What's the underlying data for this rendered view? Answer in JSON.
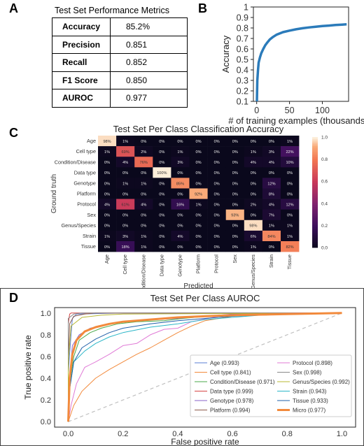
{
  "panels": {
    "A": "A",
    "B": "B",
    "C": "C",
    "D": "D"
  },
  "metrics_table": {
    "title": "Test Set Performance Metrics",
    "rows": [
      {
        "metric": "Accuracy",
        "value": "85.2%"
      },
      {
        "metric": "Precision",
        "value": "0.851"
      },
      {
        "metric": "Recall",
        "value": "0.852"
      },
      {
        "metric": "F1 Score",
        "value": "0.850"
      },
      {
        "metric": "AUROC",
        "value": "0.977"
      }
    ]
  },
  "chart_data": [
    {
      "type": "line",
      "panel": "B",
      "title": "",
      "xlabel": "# of training examples (thousands)",
      "ylabel": "Accuracy",
      "xlim": [
        -5,
        140
      ],
      "ylim": [
        0.1,
        1.0
      ],
      "xticks": [
        0,
        50,
        100
      ],
      "yticks": [
        0.1,
        0.2,
        0.3,
        0.4,
        0.5,
        0.6,
        0.7,
        0.8,
        0.9,
        1.0
      ],
      "color": "#2b7bba",
      "series": [
        {
          "x": [
            0.3,
            1,
            2,
            3,
            5,
            7,
            10,
            13,
            16,
            20,
            25,
            30,
            40,
            50,
            60,
            70,
            80,
            90,
            100,
            110,
            120,
            130,
            137
          ],
          "y": [
            0.1,
            0.3,
            0.4,
            0.47,
            0.52,
            0.56,
            0.6,
            0.635,
            0.66,
            0.69,
            0.715,
            0.735,
            0.76,
            0.775,
            0.787,
            0.797,
            0.805,
            0.812,
            0.818,
            0.823,
            0.828,
            0.832,
            0.835
          ]
        }
      ]
    },
    {
      "type": "heatmap",
      "panel": "C",
      "title": "Test Set Per Class Classification Accuracy",
      "xlabel": "Predicted",
      "ylabel": "Ground truth",
      "rows": [
        "Age",
        "Cell type",
        "Condition/Disease",
        "Data type",
        "Genotype",
        "Platform",
        "Protocol",
        "Sex",
        "Genus/Species",
        "Strain",
        "Tissue"
      ],
      "cols": [
        "Age",
        "Cell type",
        "Condition/Disease",
        "Data type",
        "Genotype",
        "Platform",
        "Protocol",
        "Sex",
        "Genus/Species",
        "Strain",
        "Tissue"
      ],
      "values": [
        [
          98,
          1,
          0,
          0,
          0,
          0,
          0,
          0,
          0,
          0,
          1
        ],
        [
          1,
          69,
          2,
          0,
          1,
          0,
          0,
          0,
          1,
          3,
          22
        ],
        [
          0,
          4,
          76,
          0,
          3,
          0,
          0,
          0,
          4,
          4,
          10
        ],
        [
          0,
          0,
          0,
          100,
          0,
          0,
          0,
          0,
          0,
          0,
          0
        ],
        [
          0,
          1,
          1,
          0,
          85,
          0,
          0,
          0,
          0,
          12,
          0
        ],
        [
          0,
          0,
          0,
          0,
          0,
          92,
          0,
          0,
          0,
          8,
          0
        ],
        [
          4,
          61,
          4,
          0,
          16,
          1,
          0,
          0,
          2,
          4,
          12
        ],
        [
          0,
          0,
          0,
          0,
          0,
          0,
          0,
          93,
          0,
          7,
          0
        ],
        [
          0,
          0,
          0,
          0,
          0,
          0,
          0,
          0,
          98,
          1,
          1
        ],
        [
          1,
          3,
          1,
          0,
          4,
          0,
          0,
          0,
          6,
          84,
          1
        ],
        [
          0,
          18,
          1,
          0,
          0,
          0,
          0,
          0,
          1,
          0,
          82
        ]
      ],
      "colorbar": {
        "min": 0.0,
        "max": 1.0,
        "ticks": [
          "0.0",
          "0.2",
          "0.4",
          "0.6",
          "0.8",
          "1.0"
        ]
      }
    },
    {
      "type": "line",
      "panel": "D",
      "title": "Test Set Per Class AUROC",
      "xlabel": "False positive rate",
      "ylabel": "True positive rate",
      "xlim": [
        -0.05,
        1.05
      ],
      "ylim": [
        -0.05,
        1.05
      ],
      "xticks": [
        "0.0",
        "0.2",
        "0.4",
        "0.6",
        "0.8",
        "1.0"
      ],
      "yticks": [
        "0.0",
        "0.2",
        "0.4",
        "0.6",
        "0.8",
        "1.0"
      ],
      "legend_position": "lower-right",
      "series": [
        {
          "name": "Age (0.993)",
          "color": "#5a7fd6",
          "width": 1,
          "points": [
            [
              0,
              0
            ],
            [
              0,
              0.45
            ],
            [
              0.01,
              0.8
            ],
            [
              0.015,
              0.95
            ],
            [
              0.03,
              0.99
            ],
            [
              0.2,
              1
            ],
            [
              1,
              1
            ]
          ]
        },
        {
          "name": "Cell type (0.841)",
          "color": "#f28a3c",
          "width": 1,
          "points": [
            [
              0,
              0
            ],
            [
              0.02,
              0.15
            ],
            [
              0.05,
              0.28
            ],
            [
              0.1,
              0.4
            ],
            [
              0.15,
              0.48
            ],
            [
              0.2,
              0.55
            ],
            [
              0.25,
              0.62
            ],
            [
              0.3,
              0.68
            ],
            [
              0.35,
              0.75
            ],
            [
              0.4,
              0.82
            ],
            [
              0.45,
              0.88
            ],
            [
              0.5,
              0.93
            ],
            [
              0.6,
              0.97
            ],
            [
              0.7,
              0.99
            ],
            [
              1,
              1
            ]
          ]
        },
        {
          "name": "Condition/Disease (0.971)",
          "color": "#4aa84a",
          "width": 1,
          "points": [
            [
              0,
              0
            ],
            [
              0.005,
              0.35
            ],
            [
              0.02,
              0.6
            ],
            [
              0.04,
              0.75
            ],
            [
              0.08,
              0.82
            ],
            [
              0.12,
              0.86
            ],
            [
              0.18,
              0.9
            ],
            [
              0.25,
              0.92
            ],
            [
              0.35,
              0.93
            ],
            [
              0.42,
              0.95
            ],
            [
              0.55,
              0.98
            ],
            [
              1,
              1
            ]
          ]
        },
        {
          "name": "Data type (0.999)",
          "color": "#d64545",
          "width": 1,
          "points": [
            [
              0,
              0
            ],
            [
              0,
              0.9
            ],
            [
              0.005,
              0.99
            ],
            [
              0.01,
              1
            ],
            [
              1,
              1
            ]
          ]
        },
        {
          "name": "Genotype (0.978)",
          "color": "#8a63c9",
          "width": 1,
          "points": [
            [
              0,
              0
            ],
            [
              0.005,
              0.4
            ],
            [
              0.015,
              0.7
            ],
            [
              0.04,
              0.8
            ],
            [
              0.08,
              0.86
            ],
            [
              0.15,
              0.9
            ],
            [
              0.25,
              0.93
            ],
            [
              0.4,
              0.95
            ],
            [
              0.6,
              0.99
            ],
            [
              1,
              1
            ]
          ]
        },
        {
          "name": "Platform (0.994)",
          "color": "#8c5a4a",
          "width": 1,
          "points": [
            [
              0,
              0
            ],
            [
              0,
              0.5
            ],
            [
              0.005,
              0.9
            ],
            [
              0.02,
              0.97
            ],
            [
              0.06,
              0.99
            ],
            [
              0.1,
              1
            ],
            [
              1,
              1
            ]
          ]
        },
        {
          "name": "Protocol (0.898)",
          "color": "#e07ad6",
          "width": 1,
          "points": [
            [
              0,
              0
            ],
            [
              0.01,
              0.15
            ],
            [
              0.03,
              0.35
            ],
            [
              0.06,
              0.5
            ],
            [
              0.1,
              0.55
            ],
            [
              0.15,
              0.62
            ],
            [
              0.2,
              0.7
            ],
            [
              0.25,
              0.72
            ],
            [
              0.3,
              0.8
            ],
            [
              0.35,
              0.85
            ],
            [
              0.4,
              0.86
            ],
            [
              0.45,
              0.92
            ],
            [
              0.55,
              0.97
            ],
            [
              0.7,
              1
            ],
            [
              1,
              1
            ]
          ]
        },
        {
          "name": "Sex (0.998)",
          "color": "#8a8a8a",
          "width": 1,
          "points": [
            [
              0,
              0
            ],
            [
              0,
              0.95
            ],
            [
              0.02,
              0.99
            ],
            [
              0.05,
              1
            ],
            [
              1,
              1
            ]
          ]
        },
        {
          "name": "Genus/Species (0.992)",
          "color": "#b8b832",
          "width": 1,
          "points": [
            [
              0,
              0
            ],
            [
              0,
              0.55
            ],
            [
              0.01,
              0.88
            ],
            [
              0.05,
              0.96
            ],
            [
              0.12,
              0.98
            ],
            [
              0.2,
              0.99
            ],
            [
              1,
              1
            ]
          ]
        },
        {
          "name": "Strain (0.943)",
          "color": "#2bb6c8",
          "width": 1,
          "points": [
            [
              0,
              0
            ],
            [
              0.005,
              0.3
            ],
            [
              0.02,
              0.55
            ],
            [
              0.06,
              0.65
            ],
            [
              0.1,
              0.72
            ],
            [
              0.15,
              0.78
            ],
            [
              0.2,
              0.82
            ],
            [
              0.3,
              0.87
            ],
            [
              0.4,
              0.9
            ],
            [
              0.5,
              0.94
            ],
            [
              0.6,
              0.96
            ],
            [
              0.7,
              0.98
            ],
            [
              0.85,
              0.99
            ],
            [
              1,
              1
            ]
          ]
        },
        {
          "name": "Tissue (0.933)",
          "color": "#1f5fa8",
          "width": 1,
          "points": [
            [
              0,
              0
            ],
            [
              0.005,
              0.3
            ],
            [
              0.02,
              0.55
            ],
            [
              0.05,
              0.68
            ],
            [
              0.1,
              0.76
            ],
            [
              0.15,
              0.82
            ],
            [
              0.2,
              0.86
            ],
            [
              0.3,
              0.9
            ],
            [
              0.4,
              0.93
            ],
            [
              0.5,
              0.95
            ],
            [
              0.6,
              0.97
            ],
            [
              0.8,
              0.99
            ],
            [
              1,
              1
            ]
          ]
        },
        {
          "name": "Micro (0.977)",
          "color": "#f28a3c",
          "width": 3,
          "points": [
            [
              0,
              0
            ],
            [
              0.005,
              0.4
            ],
            [
              0.015,
              0.62
            ],
            [
              0.03,
              0.75
            ],
            [
              0.06,
              0.83
            ],
            [
              0.1,
              0.87
            ],
            [
              0.15,
              0.9
            ],
            [
              0.2,
              0.92
            ],
            [
              0.3,
              0.94
            ],
            [
              0.4,
              0.96
            ],
            [
              0.5,
              0.97
            ],
            [
              0.6,
              0.98
            ],
            [
              0.8,
              0.99
            ],
            [
              1,
              1
            ]
          ]
        }
      ],
      "diagonal_color": "#c0c0c0"
    }
  ]
}
